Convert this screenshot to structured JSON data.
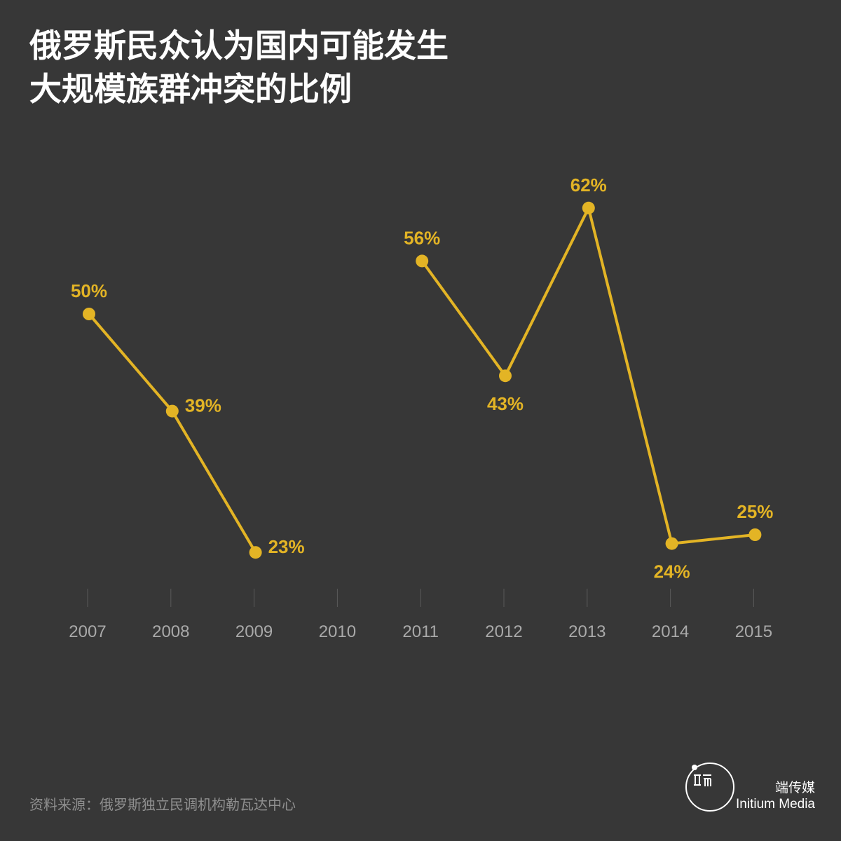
{
  "title_lines": [
    "俄罗斯民众认为国内可能发生",
    "大规模族群冲突的比例"
  ],
  "source": "资料来源：俄罗斯独立民调机构勒瓦达中心",
  "brand": {
    "cn": "端传媒",
    "en": "Initium Media"
  },
  "colors": {
    "background": "#373737",
    "series": "#e3b425",
    "axis_text": "#a9a9a9",
    "tick": "#5a5a5a"
  },
  "chart_data": {
    "type": "line",
    "title": "俄罗斯民众认为国内可能发生大规模族群冲突的比例",
    "x": [
      "2007",
      "2008",
      "2009",
      "2010",
      "2011",
      "2012",
      "2013",
      "2014",
      "2015"
    ],
    "series": [
      {
        "values": [
          50,
          39,
          23,
          null,
          56,
          43,
          62,
          24,
          25
        ],
        "labels": [
          "50%",
          "39%",
          "23%",
          "",
          "56%",
          "43%",
          "62%",
          "24%",
          "25%"
        ],
        "label_position": [
          "above",
          "right",
          "right",
          "",
          "above",
          "below",
          "above",
          "below",
          "above"
        ]
      }
    ],
    "ylim": [
      0,
      100
    ],
    "grid": false,
    "legend": "none"
  }
}
